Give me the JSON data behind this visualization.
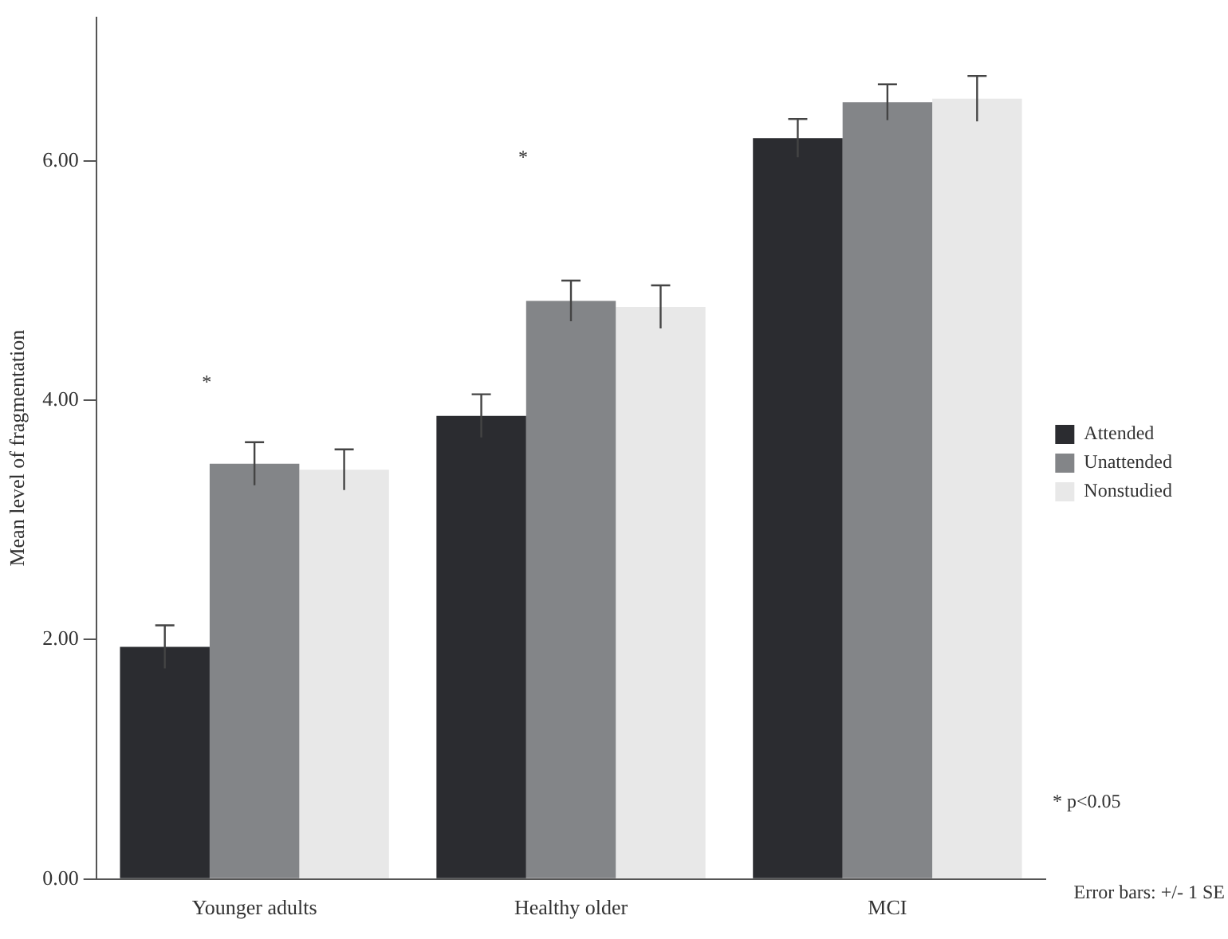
{
  "chart_data": {
    "type": "bar",
    "ylabel": "Mean level of fragmentation",
    "categories": [
      "Younger adults",
      "Healthy older",
      "MCI"
    ],
    "series": [
      {
        "name": "Attended",
        "color": "#2b2c30",
        "values": [
          1.94,
          3.87,
          6.19
        ],
        "errors": [
          0.18,
          0.18,
          0.16
        ]
      },
      {
        "name": "Unattended",
        "color": "#838588",
        "values": [
          3.47,
          4.83,
          6.49
        ],
        "errors": [
          0.18,
          0.17,
          0.15
        ]
      },
      {
        "name": "Nonstudied",
        "color": "#e8e8e8",
        "values": [
          3.42,
          4.78,
          6.52
        ],
        "errors": [
          0.17,
          0.18,
          0.19
        ]
      }
    ],
    "ylim": [
      0,
      7.2
    ],
    "yticks": [
      {
        "value": 0,
        "label": "0.00"
      },
      {
        "value": 2,
        "label": "2.00"
      },
      {
        "value": 4,
        "label": "4.00"
      },
      {
        "value": 6,
        "label": "6.00"
      }
    ],
    "grid": false,
    "legend": "right",
    "annotations": [
      "*",
      "*",
      "* p<0.05",
      "Error bars: +/- 1 SE"
    ]
  }
}
